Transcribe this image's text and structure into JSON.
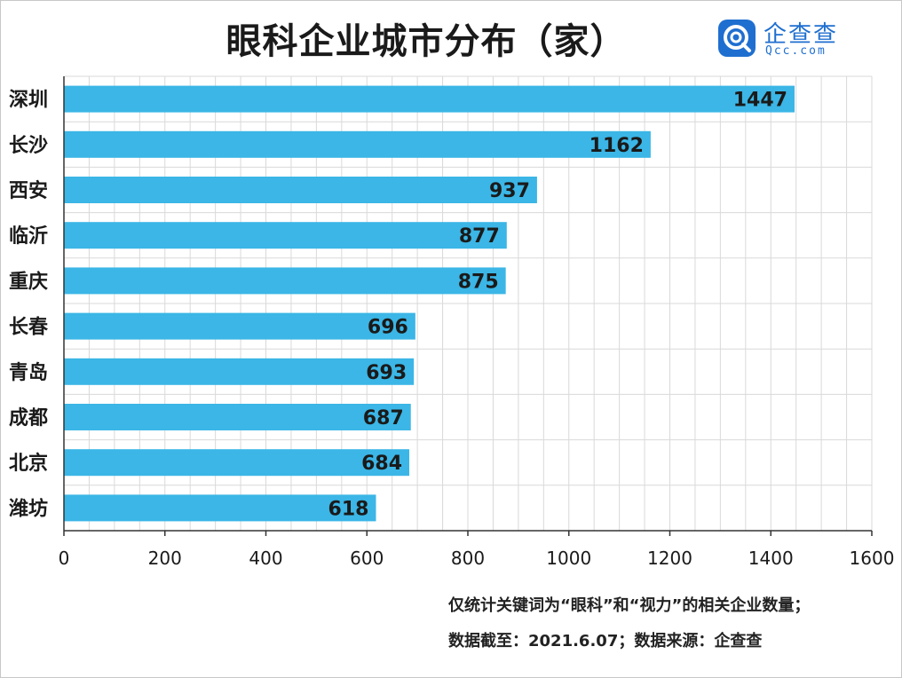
{
  "title": "眼科企业城市分布（家）",
  "brand": {
    "name": "企查查",
    "url": "Qcc.com"
  },
  "notes": {
    "line1": "仅统计关键词为“眼科”和“视力”的相关企业数量；",
    "line2": "数据截至：2021.6.07；数据来源：企查查"
  },
  "colors": {
    "bar": "#3bb6e6",
    "grid": "#d9d9d9",
    "axis": "#333333",
    "brand": "#1f6fd0"
  },
  "chart_data": {
    "type": "bar",
    "orientation": "horizontal",
    "title": "眼科企业城市分布（家）",
    "categories": [
      "深圳",
      "长沙",
      "西安",
      "临沂",
      "重庆",
      "长春",
      "青岛",
      "成都",
      "北京",
      "潍坊"
    ],
    "values": [
      1447,
      1162,
      937,
      877,
      875,
      696,
      693,
      687,
      684,
      618
    ],
    "xlim": [
      0,
      1600
    ],
    "xticks": [
      0,
      200,
      400,
      600,
      800,
      1000,
      1200,
      1400,
      1600
    ],
    "grid": true,
    "data_labels": true
  }
}
